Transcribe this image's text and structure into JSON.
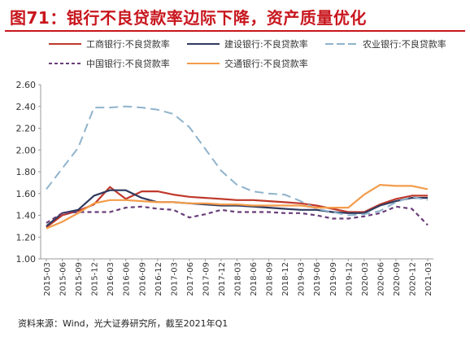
{
  "header": {
    "title": "图71：银行不良贷款率边际下降，资产质量优化"
  },
  "footer": {
    "source": "资料来源：Wind，光大证券研究所，截至2021年Q1"
  },
  "chart_data": {
    "type": "line",
    "title": "图71：银行不良贷款率边际下降，资产质量优化",
    "xlabel": "",
    "ylabel": "",
    "ylim": [
      1.0,
      2.6
    ],
    "yticks": [
      "1.00",
      "1.20",
      "1.40",
      "1.60",
      "1.80",
      "2.00",
      "2.20",
      "2.40",
      "2.60"
    ],
    "grid": false,
    "legend_position": "top",
    "x": [
      "2015-03",
      "2015-06",
      "2015-09",
      "2015-12",
      "2016-03",
      "2016-06",
      "2016-09",
      "2016-12",
      "2017-03",
      "2017-06",
      "2017-09",
      "2017-12",
      "2018-03",
      "2018-06",
      "2018-09",
      "2018-12",
      "2019-03",
      "2019-06",
      "2019-09",
      "2019-12",
      "2020-03",
      "2020-06",
      "2020-09",
      "2020-12",
      "2021-03"
    ],
    "xtick_labels": [
      "2015-03",
      "2015-06",
      "2015-09",
      "2015-12",
      "2016-03",
      "2016-06",
      "2016-09",
      "2016-12",
      "2017-03",
      "2017-06",
      "2017-09",
      "2017-12",
      "2018-03",
      "2018-06",
      "2018-09",
      "2018-12",
      "2019-03",
      "2019-06",
      "2019-09",
      "2019-12",
      "2020-03",
      "2020-06",
      "2020-09",
      "2020-12",
      "2021-03"
    ],
    "series": [
      {
        "name": "工商银行:不良贷款率",
        "color": "#c0392b",
        "dash": "solid",
        "values": [
          1.29,
          1.4,
          1.44,
          1.5,
          1.66,
          1.55,
          1.62,
          1.62,
          1.59,
          1.57,
          1.56,
          1.55,
          1.54,
          1.54,
          1.53,
          1.52,
          1.51,
          1.49,
          1.46,
          1.43,
          1.43,
          1.5,
          1.55,
          1.58,
          1.58
        ]
      },
      {
        "name": "建设银行:不良贷款率",
        "color": "#2f3a5f",
        "dash": "solid",
        "values": [
          1.3,
          1.42,
          1.45,
          1.58,
          1.63,
          1.63,
          1.56,
          1.52,
          1.52,
          1.51,
          1.5,
          1.49,
          1.49,
          1.48,
          1.47,
          1.46,
          1.45,
          1.45,
          1.43,
          1.42,
          1.42,
          1.49,
          1.53,
          1.56,
          1.56
        ]
      },
      {
        "name": "农业银行:不良贷款率",
        "color": "#8fb3cc",
        "dash": "longdash",
        "values": [
          1.64,
          1.83,
          2.02,
          2.39,
          2.39,
          2.4,
          2.39,
          2.37,
          2.33,
          2.21,
          2.01,
          1.81,
          1.68,
          1.62,
          1.6,
          1.59,
          1.53,
          1.46,
          1.43,
          1.4,
          1.41,
          1.44,
          1.52,
          1.57,
          1.54
        ]
      },
      {
        "name": "中国银行:不良贷款率",
        "color": "#6a3d7a",
        "dash": "dash",
        "values": [
          1.33,
          1.42,
          1.43,
          1.43,
          1.43,
          1.47,
          1.48,
          1.46,
          1.45,
          1.38,
          1.41,
          1.45,
          1.43,
          1.43,
          1.43,
          1.42,
          1.42,
          1.4,
          1.37,
          1.37,
          1.39,
          1.42,
          1.48,
          1.46,
          1.31
        ]
      },
      {
        "name": "交通银行:不良贷款率",
        "color": "#f39c4a",
        "dash": "solid",
        "values": [
          1.28,
          1.34,
          1.42,
          1.51,
          1.54,
          1.54,
          1.53,
          1.52,
          1.52,
          1.51,
          1.51,
          1.5,
          1.5,
          1.49,
          1.49,
          1.49,
          1.49,
          1.47,
          1.47,
          1.47,
          1.59,
          1.68,
          1.67,
          1.67,
          1.64
        ]
      }
    ]
  }
}
